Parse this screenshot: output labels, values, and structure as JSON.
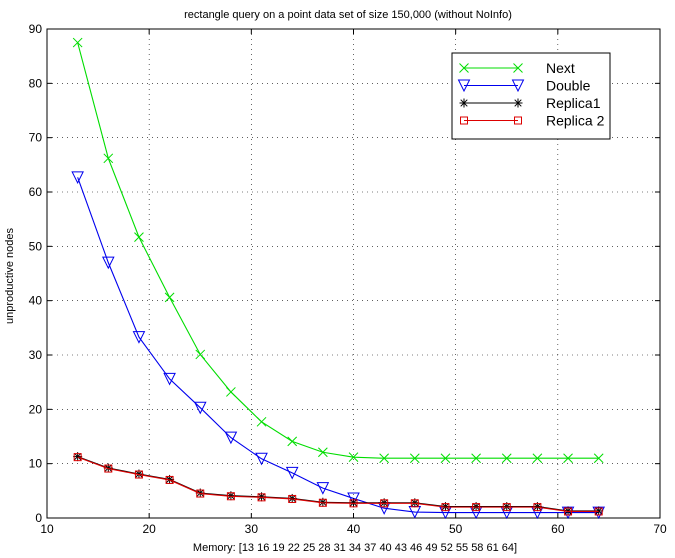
{
  "chart_data": {
    "type": "line",
    "title": "rectangle query on a point data set of size 150,000 (without NoInfo)",
    "xlabel": "Memory: [13  16  19  22  25  28  31  34  37  40  43  46  49  52  55  58  61  64]",
    "ylabel": "unproductive nodes",
    "xlim": [
      10,
      70
    ],
    "ylim": [
      0,
      90
    ],
    "xticks": [
      10,
      20,
      30,
      40,
      50,
      60,
      70
    ],
    "yticks": [
      0,
      10,
      20,
      30,
      40,
      50,
      60,
      70,
      80,
      90
    ],
    "grid": true,
    "legend_position": "top-right",
    "x": [
      13,
      16,
      19,
      22,
      25,
      28,
      31,
      34,
      37,
      40,
      43,
      46,
      49,
      52,
      55,
      58,
      61,
      64
    ],
    "series": [
      {
        "name": "Next",
        "color": "#00dd00",
        "marker": "x",
        "values": [
          87.5,
          66.2,
          51.7,
          40.6,
          30.1,
          23.2,
          17.7,
          14.1,
          12.1,
          11.2,
          11.0,
          11.0,
          11.0,
          11.0,
          11.0,
          11.0,
          11.0,
          11.0
        ]
      },
      {
        "name": "Double",
        "color": "#0000ee",
        "marker": "triangle-down",
        "values": [
          62.7,
          47.0,
          33.3,
          25.6,
          20.3,
          14.8,
          10.9,
          8.3,
          5.5,
          3.6,
          1.8,
          1.1,
          1.0,
          1.0,
          1.0,
          1.0,
          1.0,
          1.0
        ]
      },
      {
        "name": "Replica1",
        "color": "#000000",
        "marker": "star",
        "values": [
          11.3,
          9.2,
          8.1,
          7.1,
          4.6,
          4.1,
          3.9,
          3.6,
          2.9,
          2.8,
          2.8,
          2.8,
          2.1,
          2.1,
          2.1,
          2.1,
          1.3,
          1.3
        ]
      },
      {
        "name": "Replica 2",
        "color": "#dd0000",
        "marker": "square",
        "values": [
          11.2,
          9.1,
          8.0,
          7.0,
          4.5,
          4.0,
          3.8,
          3.5,
          2.8,
          2.7,
          2.7,
          2.7,
          2.0,
          2.0,
          2.0,
          2.0,
          1.2,
          1.2
        ]
      }
    ]
  }
}
